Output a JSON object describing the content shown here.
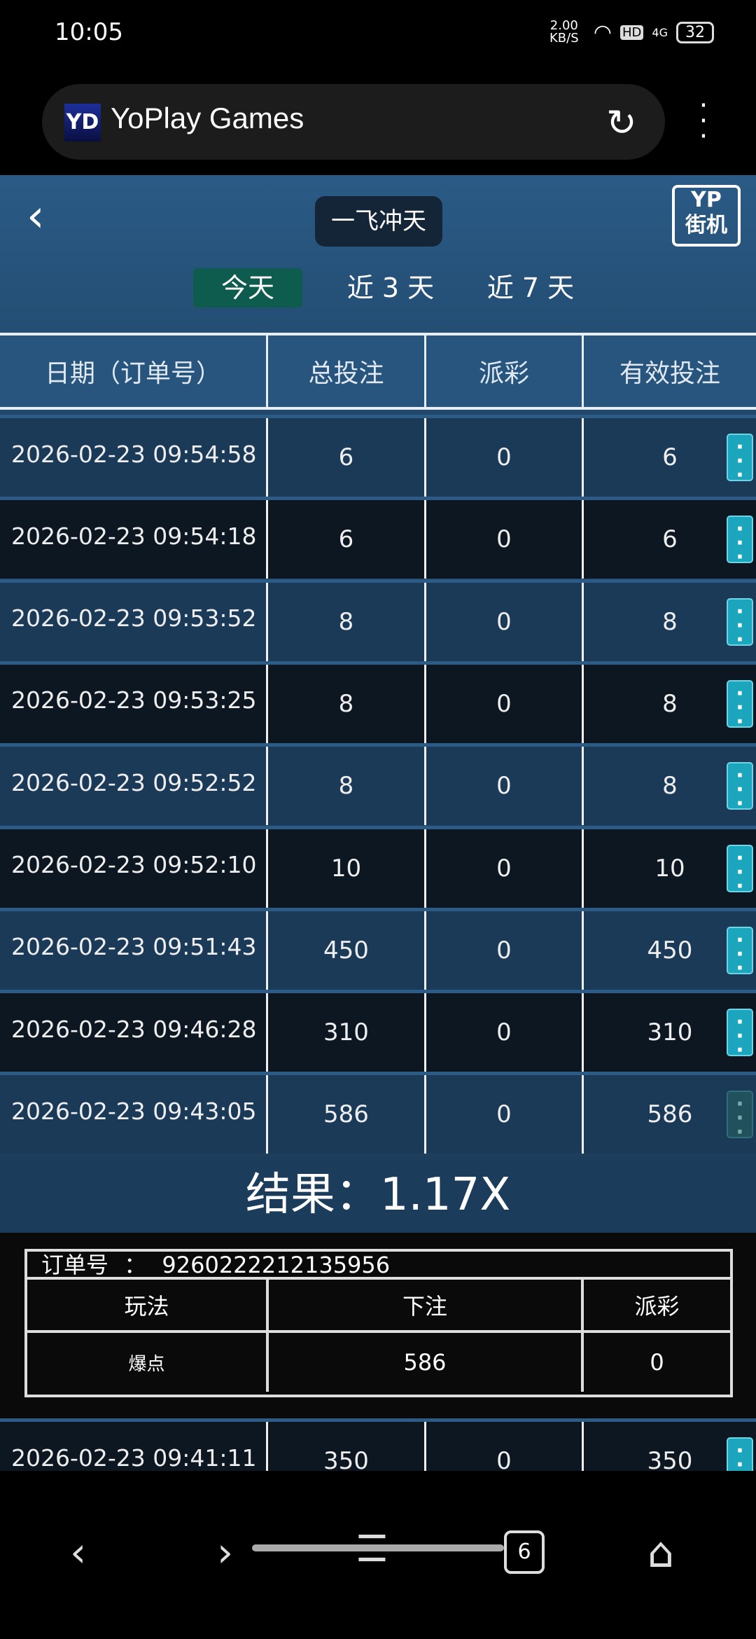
{
  "status": {
    "time": "10:05",
    "speed": "2.00 KB/S",
    "hd": "HD",
    "network": "4G",
    "battery": "32"
  },
  "browser": {
    "logo": "YD",
    "title": "YoPlay Games",
    "tab_count": "6"
  },
  "header": {
    "game_title": "一飞冲天",
    "brand_logo": "YP 街机",
    "tabs": [
      {
        "label": "今天",
        "active": true
      },
      {
        "label": "近 3 天"
      },
      {
        "label": "近 7 天"
      }
    ]
  },
  "table": {
    "columns": [
      "日期（订单号）",
      "总投注",
      "派彩",
      "有效投注"
    ],
    "rows": [
      [
        "2026-02-23 09:54:58",
        "6",
        "0",
        "6"
      ],
      [
        "2026-02-23 09:54:18",
        "6",
        "0",
        "6"
      ],
      [
        "2026-02-23 09:53:52",
        "8",
        "0",
        "8"
      ],
      [
        "2026-02-23 09:53:25",
        "8",
        "0",
        "8"
      ],
      [
        "2026-02-23 09:52:52",
        "8",
        "0",
        "8"
      ],
      [
        "2026-02-23 09:52:10",
        "10",
        "0",
        "10"
      ],
      [
        "2026-02-23 09:51:43",
        "450",
        "0",
        "450"
      ],
      [
        "2026-02-23 09:46:28",
        "310",
        "0",
        "310"
      ],
      [
        "2026-02-23 09:43:05",
        "586",
        "0",
        "586"
      ]
    ],
    "after_rows": [
      [
        "2026-02-23 09:41:11",
        "350",
        "0",
        "350"
      ]
    ]
  },
  "detail": {
    "result": "结果：1.17X",
    "order_label": "订单号",
    "order_sep": "：",
    "order_no": "9260222212135956",
    "columns": [
      "玩法",
      "下注",
      "派彩"
    ],
    "values": [
      "爆点",
      "586",
      "0"
    ]
  },
  "colors": {
    "accent": "#1ba6be",
    "active_tab": "#0e5c4e"
  }
}
